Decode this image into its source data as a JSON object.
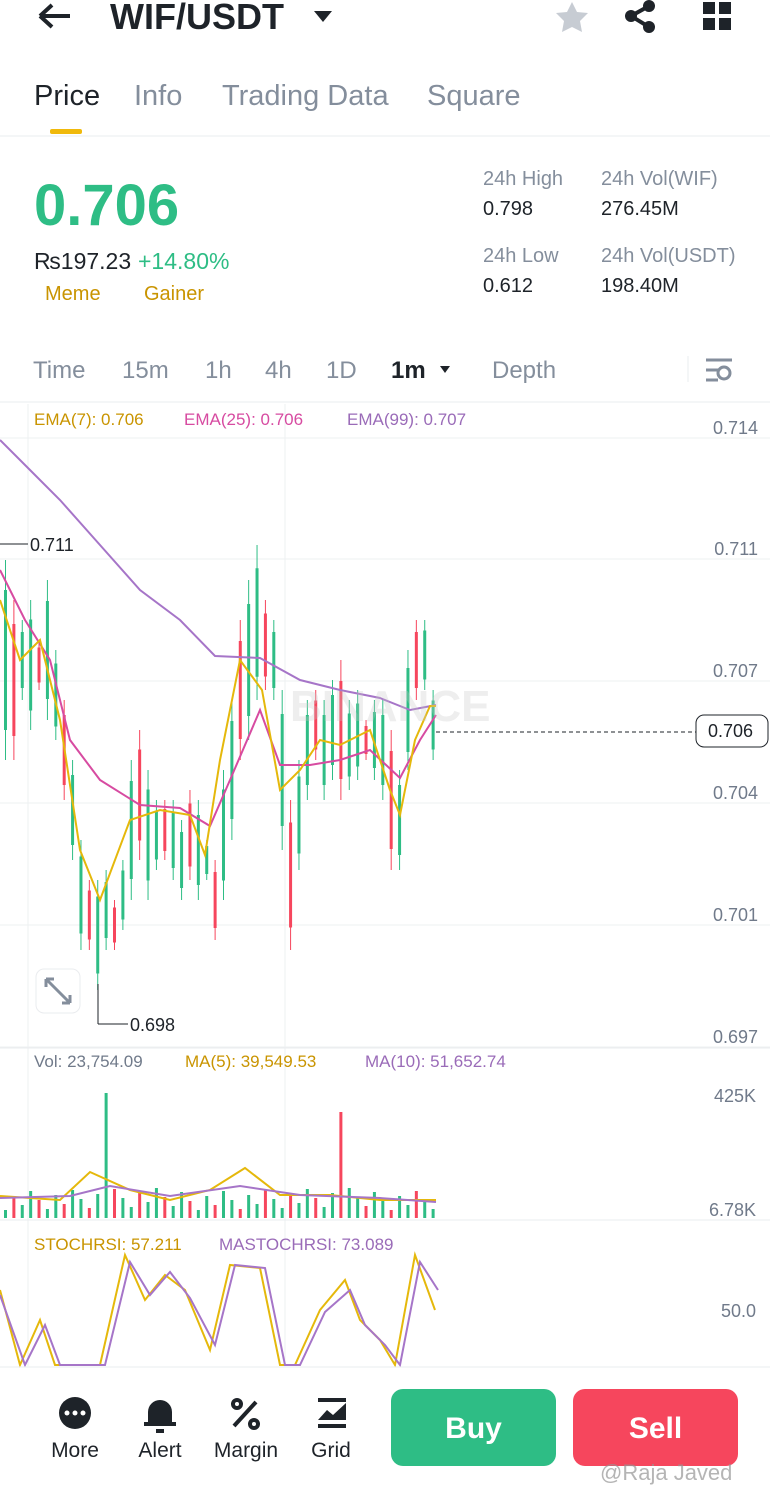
{
  "header": {
    "title": "WIF/USDT"
  },
  "tabs": [
    "Price",
    "Info",
    "Trading Data",
    "Square"
  ],
  "ticker": {
    "price": "0.706",
    "fiat": "₨197.23",
    "change": "+14.80%",
    "tags": [
      "Meme",
      "Gainer"
    ]
  },
  "stats": [
    {
      "label": "24h High",
      "value": "0.798"
    },
    {
      "label": "24h Vol(WIF)",
      "value": "276.45M"
    },
    {
      "label": "24h Low",
      "value": "0.612"
    },
    {
      "label": "24h Vol(USDT)",
      "value": "198.40M"
    }
  ],
  "intervals": [
    "Time",
    "15m",
    "1h",
    "4h",
    "1D",
    "1m",
    "Depth"
  ],
  "chart": {
    "ema": [
      "EMA(7): 0.706",
      "EMA(25): 0.706",
      "EMA(99): 0.707"
    ],
    "price_axis": [
      "0.714",
      "0.711",
      "0.707",
      "0.704",
      "0.701",
      "0.697"
    ],
    "current": "0.706",
    "high": "0.711",
    "low": "0.698",
    "watermark": "BINANCE",
    "volume": [
      "Vol: 23,754.09",
      "MA(5): 39,549.53",
      "MA(10): 51,652.74"
    ],
    "volume_axis": [
      "425K",
      "6.78K"
    ],
    "stoch": [
      "STOCHRSI: 57.211",
      "MASTOCHRSI: 73.089"
    ],
    "stoch_axis": "50.0"
  },
  "actions": [
    "More",
    "Alert",
    "Margin",
    "Grid"
  ],
  "buy": "Buy",
  "sell": "Sell",
  "credit": "@Raja Javed"
}
